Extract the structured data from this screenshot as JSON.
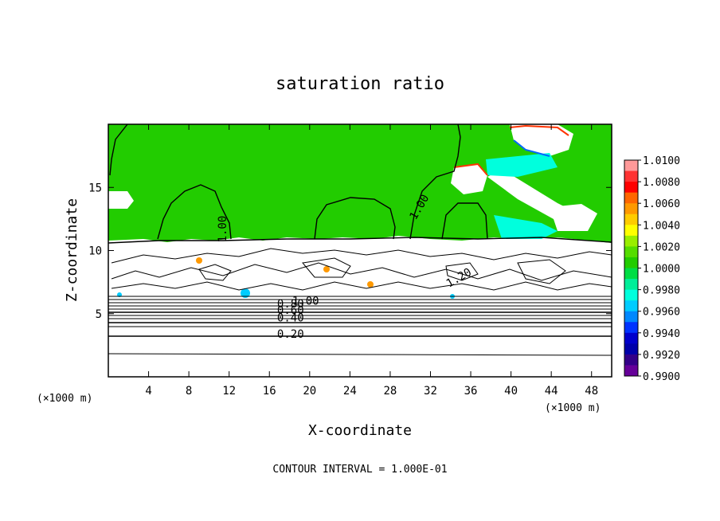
{
  "chart_data": {
    "type": "heatmap",
    "title": "saturation ratio",
    "xlabel": "X-coordinate",
    "ylabel": "Z-coordinate",
    "x_unit": "(×1000 m)",
    "z_unit": "(×1000 m)",
    "xlim": [
      0,
      50
    ],
    "ylim": [
      0,
      20
    ],
    "x_ticks": [
      "4",
      "8",
      "12",
      "16",
      "20",
      "24",
      "28",
      "32",
      "36",
      "40",
      "44",
      "48"
    ],
    "y_ticks": [
      "5",
      "10",
      "15"
    ],
    "contour_labels": [
      {
        "text": "1.00",
        "x": 11.7,
        "z": 11.7,
        "rotate": -90
      },
      {
        "text": "1.00",
        "x": 31.2,
        "z": 13.3,
        "rotate": -60
      },
      {
        "text": "1.20",
        "x": 35.0,
        "z": 7.6,
        "rotate": -30
      },
      {
        "text": "1.00",
        "x": 19.6,
        "z": 5.7,
        "rotate": 0
      },
      {
        "text": "0.80",
        "x": 18.1,
        "z": 5.5,
        "rotate": 0
      },
      {
        "text": "0.60",
        "x": 18.1,
        "z": 5.0,
        "rotate": 0
      },
      {
        "text": "0.40",
        "x": 18.1,
        "z": 4.4,
        "rotate": 0
      },
      {
        "text": "0.20",
        "x": 18.1,
        "z": 3.1,
        "rotate": 0
      }
    ],
    "colorbar": {
      "range": [
        0.99,
        1.01
      ],
      "labels": [
        "1.0100",
        "1.0080",
        "1.0060",
        "1.0040",
        "1.0020",
        "1.0000",
        "0.9980",
        "0.9960",
        "0.9940",
        "0.9920",
        "0.9900"
      ],
      "colors": [
        "#ff9999",
        "#ff3333",
        "#ff0000",
        "#ff6600",
        "#ff9900",
        "#ffcc00",
        "#ffff00",
        "#99ee00",
        "#55dd00",
        "#22cc00",
        "#00dd44",
        "#00ee99",
        "#00ffdd",
        "#00ccff",
        "#0088ff",
        "#0033ff",
        "#0000cc",
        "#0000aa",
        "#330088",
        "#660099"
      ]
    },
    "footer": "CONTOUR INTERVAL = 1.000E-01"
  }
}
